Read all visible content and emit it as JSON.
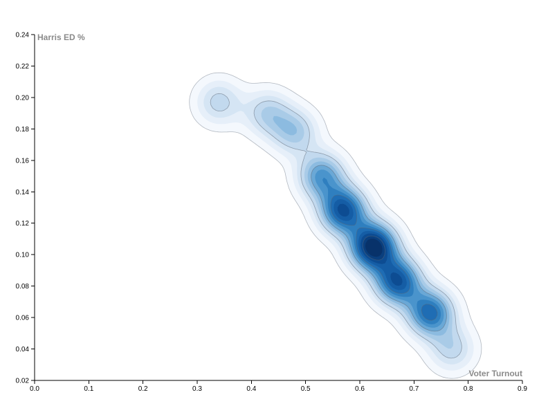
{
  "chart_data": {
    "type": "contour-density",
    "xlabel": "Voter Turnout",
    "ylabel": "Harris ED %",
    "xlim": [
      0.0,
      0.9
    ],
    "ylim": [
      0.02,
      0.24
    ],
    "x_ticks": [
      "0.0",
      "0.1",
      "0.2",
      "0.3",
      "0.4",
      "0.5",
      "0.6",
      "0.7",
      "0.8",
      "0.9"
    ],
    "y_ticks": [
      "0.02",
      "0.04",
      "0.06",
      "0.08",
      "0.10",
      "0.12",
      "0.14",
      "0.16",
      "0.18",
      "0.20",
      "0.22",
      "0.24"
    ],
    "grid": false,
    "color_scheme": "blues",
    "density_ridge": [
      {
        "x": 0.34,
        "y": 0.197
      },
      {
        "x": 0.43,
        "y": 0.19
      },
      {
        "x": 0.48,
        "y": 0.178
      },
      {
        "x": 0.53,
        "y": 0.15
      },
      {
        "x": 0.57,
        "y": 0.128
      },
      {
        "x": 0.625,
        "y": 0.105
      },
      {
        "x": 0.67,
        "y": 0.083
      },
      {
        "x": 0.73,
        "y": 0.063
      },
      {
        "x": 0.77,
        "y": 0.04
      }
    ],
    "peak": {
      "x": 0.625,
      "y": 0.105
    }
  },
  "colors": {
    "axis": "#000000",
    "axis_title": "#8a8a8a",
    "contour_stroke": "#5b6675",
    "fill_levels": [
      "#f4f8fd",
      "#e6eff9",
      "#d5e5f4",
      "#c2d9ee",
      "#a9cbe7",
      "#8cbbe0",
      "#6aa8d6",
      "#4a94cc",
      "#2f7fbf",
      "#1f6db4",
      "#155da5",
      "#0d4c92",
      "#0a3f7e",
      "#08326a"
    ]
  }
}
